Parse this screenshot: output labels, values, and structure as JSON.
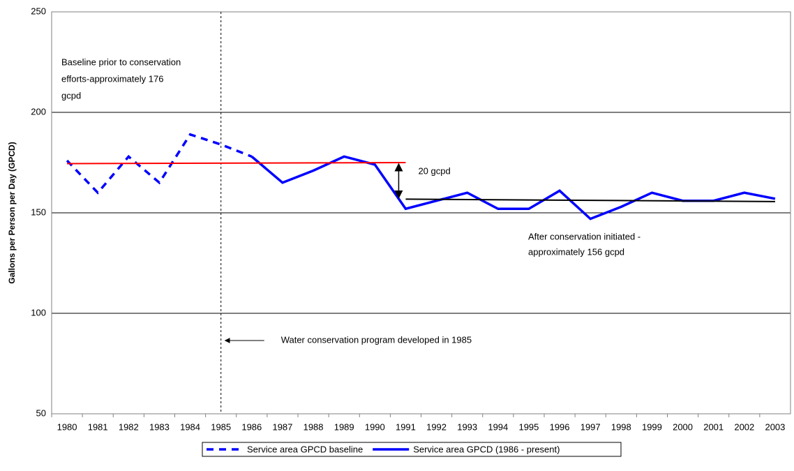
{
  "chart_data": {
    "type": "line",
    "ylabel": "Gallons per Person per Day (GPCD)",
    "categories": [
      "1980",
      "1981",
      "1982",
      "1983",
      "1984",
      "1985",
      "1986",
      "1987",
      "1988",
      "1989",
      "1990",
      "1991",
      "1992",
      "1993",
      "1994",
      "1995",
      "1996",
      "1997",
      "1998",
      "1999",
      "2000",
      "2001",
      "2002",
      "2003"
    ],
    "series": [
      {
        "name": "Service area GPCD baseline",
        "color": "#0000ff",
        "dashed": true,
        "values": [
          176,
          160,
          178,
          165,
          189,
          184,
          178,
          null,
          null,
          null,
          null,
          null,
          null,
          null,
          null,
          null,
          null,
          null,
          null,
          null,
          null,
          null,
          null,
          null
        ]
      },
      {
        "name": "Service area GPCD (1986 - present)",
        "color": "#0000ff",
        "dashed": false,
        "values": [
          null,
          null,
          null,
          null,
          null,
          null,
          178,
          165,
          171,
          178,
          174,
          152,
          156,
          160,
          152,
          152,
          161,
          147,
          153,
          160,
          156,
          156,
          160,
          157
        ]
      }
    ],
    "trend_lines": [
      {
        "color": "#ff0000",
        "from": "1980",
        "to": "1991",
        "values": [
          174.5,
          175
        ]
      },
      {
        "color": "#000000",
        "from": "1991",
        "to": "2003",
        "values": [
          156.8,
          155.6
        ]
      }
    ],
    "vline": "1985",
    "annotations": {
      "baseline": [
        "Baseline prior to conservation",
        "efforts-approximately 176",
        "gcpd"
      ],
      "difference": "20 gcpd",
      "after": [
        "After conservation initiated -",
        "approximately 156 gcpd"
      ],
      "program": "Water conservation program developed in 1985"
    },
    "ylim": [
      50,
      250
    ],
    "yticks": [
      50,
      100,
      150,
      200,
      250
    ],
    "grid": true
  }
}
